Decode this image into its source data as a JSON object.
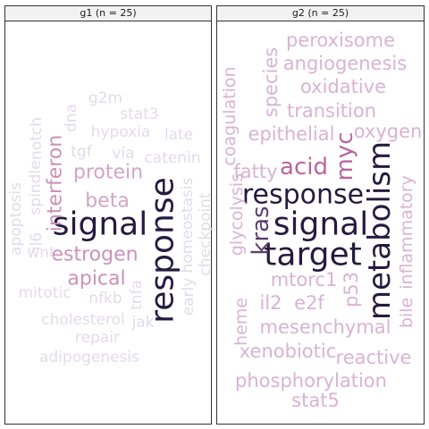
{
  "panels": [
    {
      "label": "g1 (n = 25)"
    },
    {
      "label": "g2 (n = 25)"
    }
  ],
  "chart_data": {
    "type": "wordcloud",
    "facets": [
      {
        "facet": "g1 (n = 25)",
        "words": [
          {
            "word": "signal",
            "color": "#251a3f"
          },
          {
            "word": "response",
            "color": "#251a3f"
          },
          {
            "word": "estrogen",
            "color": "#cc92b8"
          },
          {
            "word": "apical",
            "color": "#cc92b8"
          },
          {
            "word": "interferon",
            "color": "#cc92b8"
          },
          {
            "word": "protein",
            "color": "#d2a6c6"
          },
          {
            "word": "beta",
            "color": "#d2a6c6"
          },
          {
            "word": "g2m",
            "color": "#e3dbea"
          },
          {
            "word": "stat3",
            "color": "#e3dbea"
          },
          {
            "word": "hypoxia",
            "color": "#e3dbea"
          },
          {
            "word": "late",
            "color": "#e3dbea"
          },
          {
            "word": "tgf",
            "color": "#e3dbea"
          },
          {
            "word": "via",
            "color": "#e3dbea"
          },
          {
            "word": "catenin",
            "color": "#e3dbea"
          },
          {
            "word": "dna",
            "color": "#e3dbea"
          },
          {
            "word": "notch",
            "color": "#e3dbea"
          },
          {
            "word": "spindle",
            "color": "#e3dbea"
          },
          {
            "word": "apoptosis",
            "color": "#e3dbea"
          },
          {
            "word": "il6",
            "color": "#e3dbea"
          },
          {
            "word": "wnt",
            "color": "#e3dbea"
          },
          {
            "word": "mitotic",
            "color": "#e3dbea"
          },
          {
            "word": "nfkb",
            "color": "#e3dbea"
          },
          {
            "word": "tnfa",
            "color": "#e3dbea"
          },
          {
            "word": "jak",
            "color": "#e3dbea"
          },
          {
            "word": "cholesterol",
            "color": "#e3dbea"
          },
          {
            "word": "repair",
            "color": "#e3dbea"
          },
          {
            "word": "adipogenesis",
            "color": "#e3dbea"
          },
          {
            "word": "early",
            "color": "#e3dbea"
          },
          {
            "word": "homeostasis",
            "color": "#e3dbea"
          },
          {
            "word": "checkpoint",
            "color": "#e3dbea"
          }
        ]
      },
      {
        "facet": "g2 (n = 25)",
        "words": [
          {
            "word": "signal",
            "color": "#251a3f"
          },
          {
            "word": "target",
            "color": "#251a3f"
          },
          {
            "word": "response",
            "color": "#251a3f"
          },
          {
            "word": "metabolism",
            "color": "#251a3f"
          },
          {
            "word": "kras",
            "color": "#5c3d6e"
          },
          {
            "word": "myc",
            "color": "#b8659e"
          },
          {
            "word": "acid",
            "color": "#b8659e"
          },
          {
            "word": "peroxisome",
            "color": "#d9b3d3"
          },
          {
            "word": "angiogenesis",
            "color": "#d9b3d3"
          },
          {
            "word": "oxidative",
            "color": "#d9b3d3"
          },
          {
            "word": "transition",
            "color": "#d9b3d3"
          },
          {
            "word": "epithelial",
            "color": "#d9b3d3"
          },
          {
            "word": "oxygen",
            "color": "#d9b3d3"
          },
          {
            "word": "species",
            "color": "#d9b3d3"
          },
          {
            "word": "coagulation",
            "color": "#d9b3d3"
          },
          {
            "word": "fatty",
            "color": "#d9b3d3"
          },
          {
            "word": "glycolysis",
            "color": "#d9b3d3"
          },
          {
            "word": "heme",
            "color": "#d9b3d3"
          },
          {
            "word": "inflammatory",
            "color": "#d9b3d3"
          },
          {
            "word": "bile",
            "color": "#d9b3d3"
          },
          {
            "word": "mtorc1",
            "color": "#d9b3d3"
          },
          {
            "word": "p53",
            "color": "#d9b3d3"
          },
          {
            "word": "il2",
            "color": "#d9b3d3"
          },
          {
            "word": "e2f",
            "color": "#d9b3d3"
          },
          {
            "word": "mesenchymal",
            "color": "#d9b3d3"
          },
          {
            "word": "xenobiotic",
            "color": "#d9b3d3"
          },
          {
            "word": "reactive",
            "color": "#d9b3d3"
          },
          {
            "word": "phosphorylation",
            "color": "#d9b3d3"
          },
          {
            "word": "stat5",
            "color": "#d9b3d3"
          }
        ]
      }
    ]
  }
}
